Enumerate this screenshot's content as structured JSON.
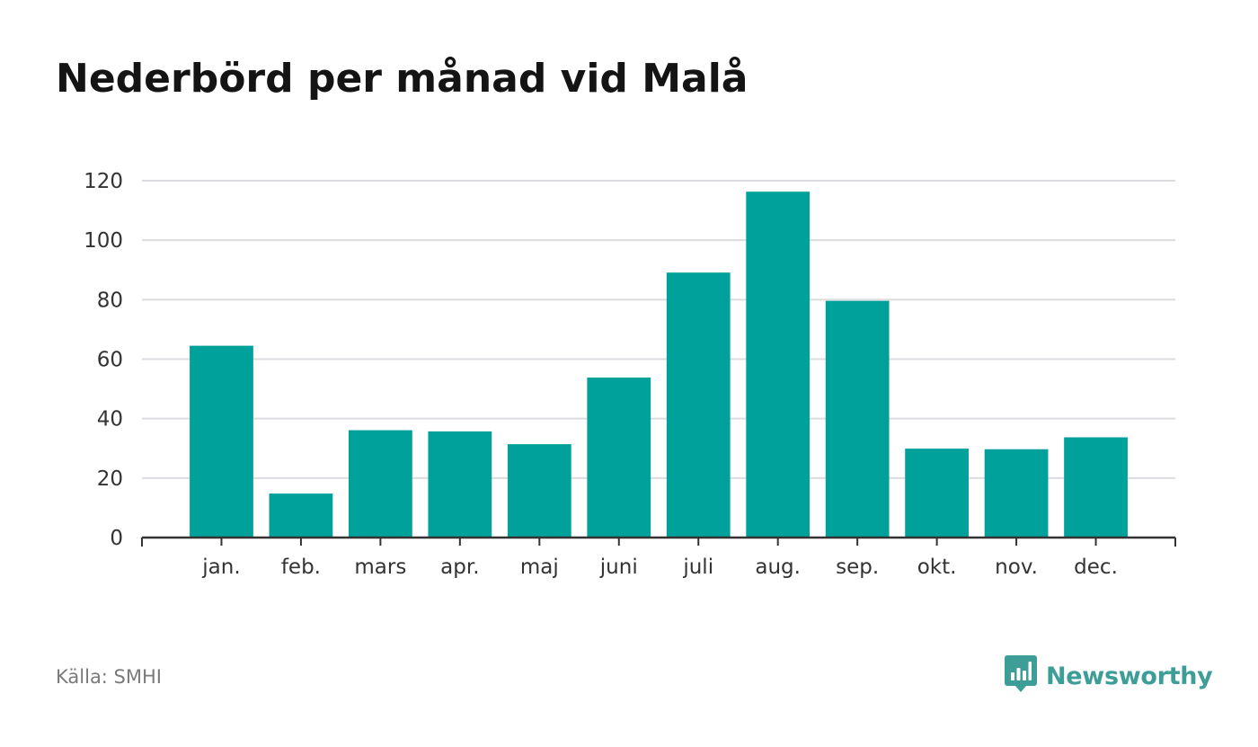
{
  "title": "Nederbörd per månad vid Malå",
  "source": "Källa: SMHI",
  "brand": {
    "name": "Newsworthy",
    "icon": "newsworthy-logo-icon",
    "color": "#3d9e97"
  },
  "colors": {
    "bar": "#00a19a",
    "grid": "#dcdce0",
    "axis": "#333333",
    "tick_text": "#333333"
  },
  "chart_data": {
    "type": "bar",
    "title": "Nederbörd per månad vid Malå",
    "categories": [
      "jan.",
      "feb.",
      "mars",
      "apr.",
      "maj",
      "juni",
      "juli",
      "aug.",
      "sep.",
      "okt.",
      "nov.",
      "dec."
    ],
    "values": [
      64.5,
      14.8,
      36.1,
      35.7,
      31.4,
      53.8,
      89.1,
      116.3,
      79.6,
      29.9,
      29.7,
      33.7
    ],
    "ylim": [
      0,
      120
    ],
    "yticks": [
      0,
      20,
      40,
      60,
      80,
      100,
      120
    ],
    "xlabel": "",
    "ylabel": "",
    "grid": true,
    "legend": "none"
  }
}
